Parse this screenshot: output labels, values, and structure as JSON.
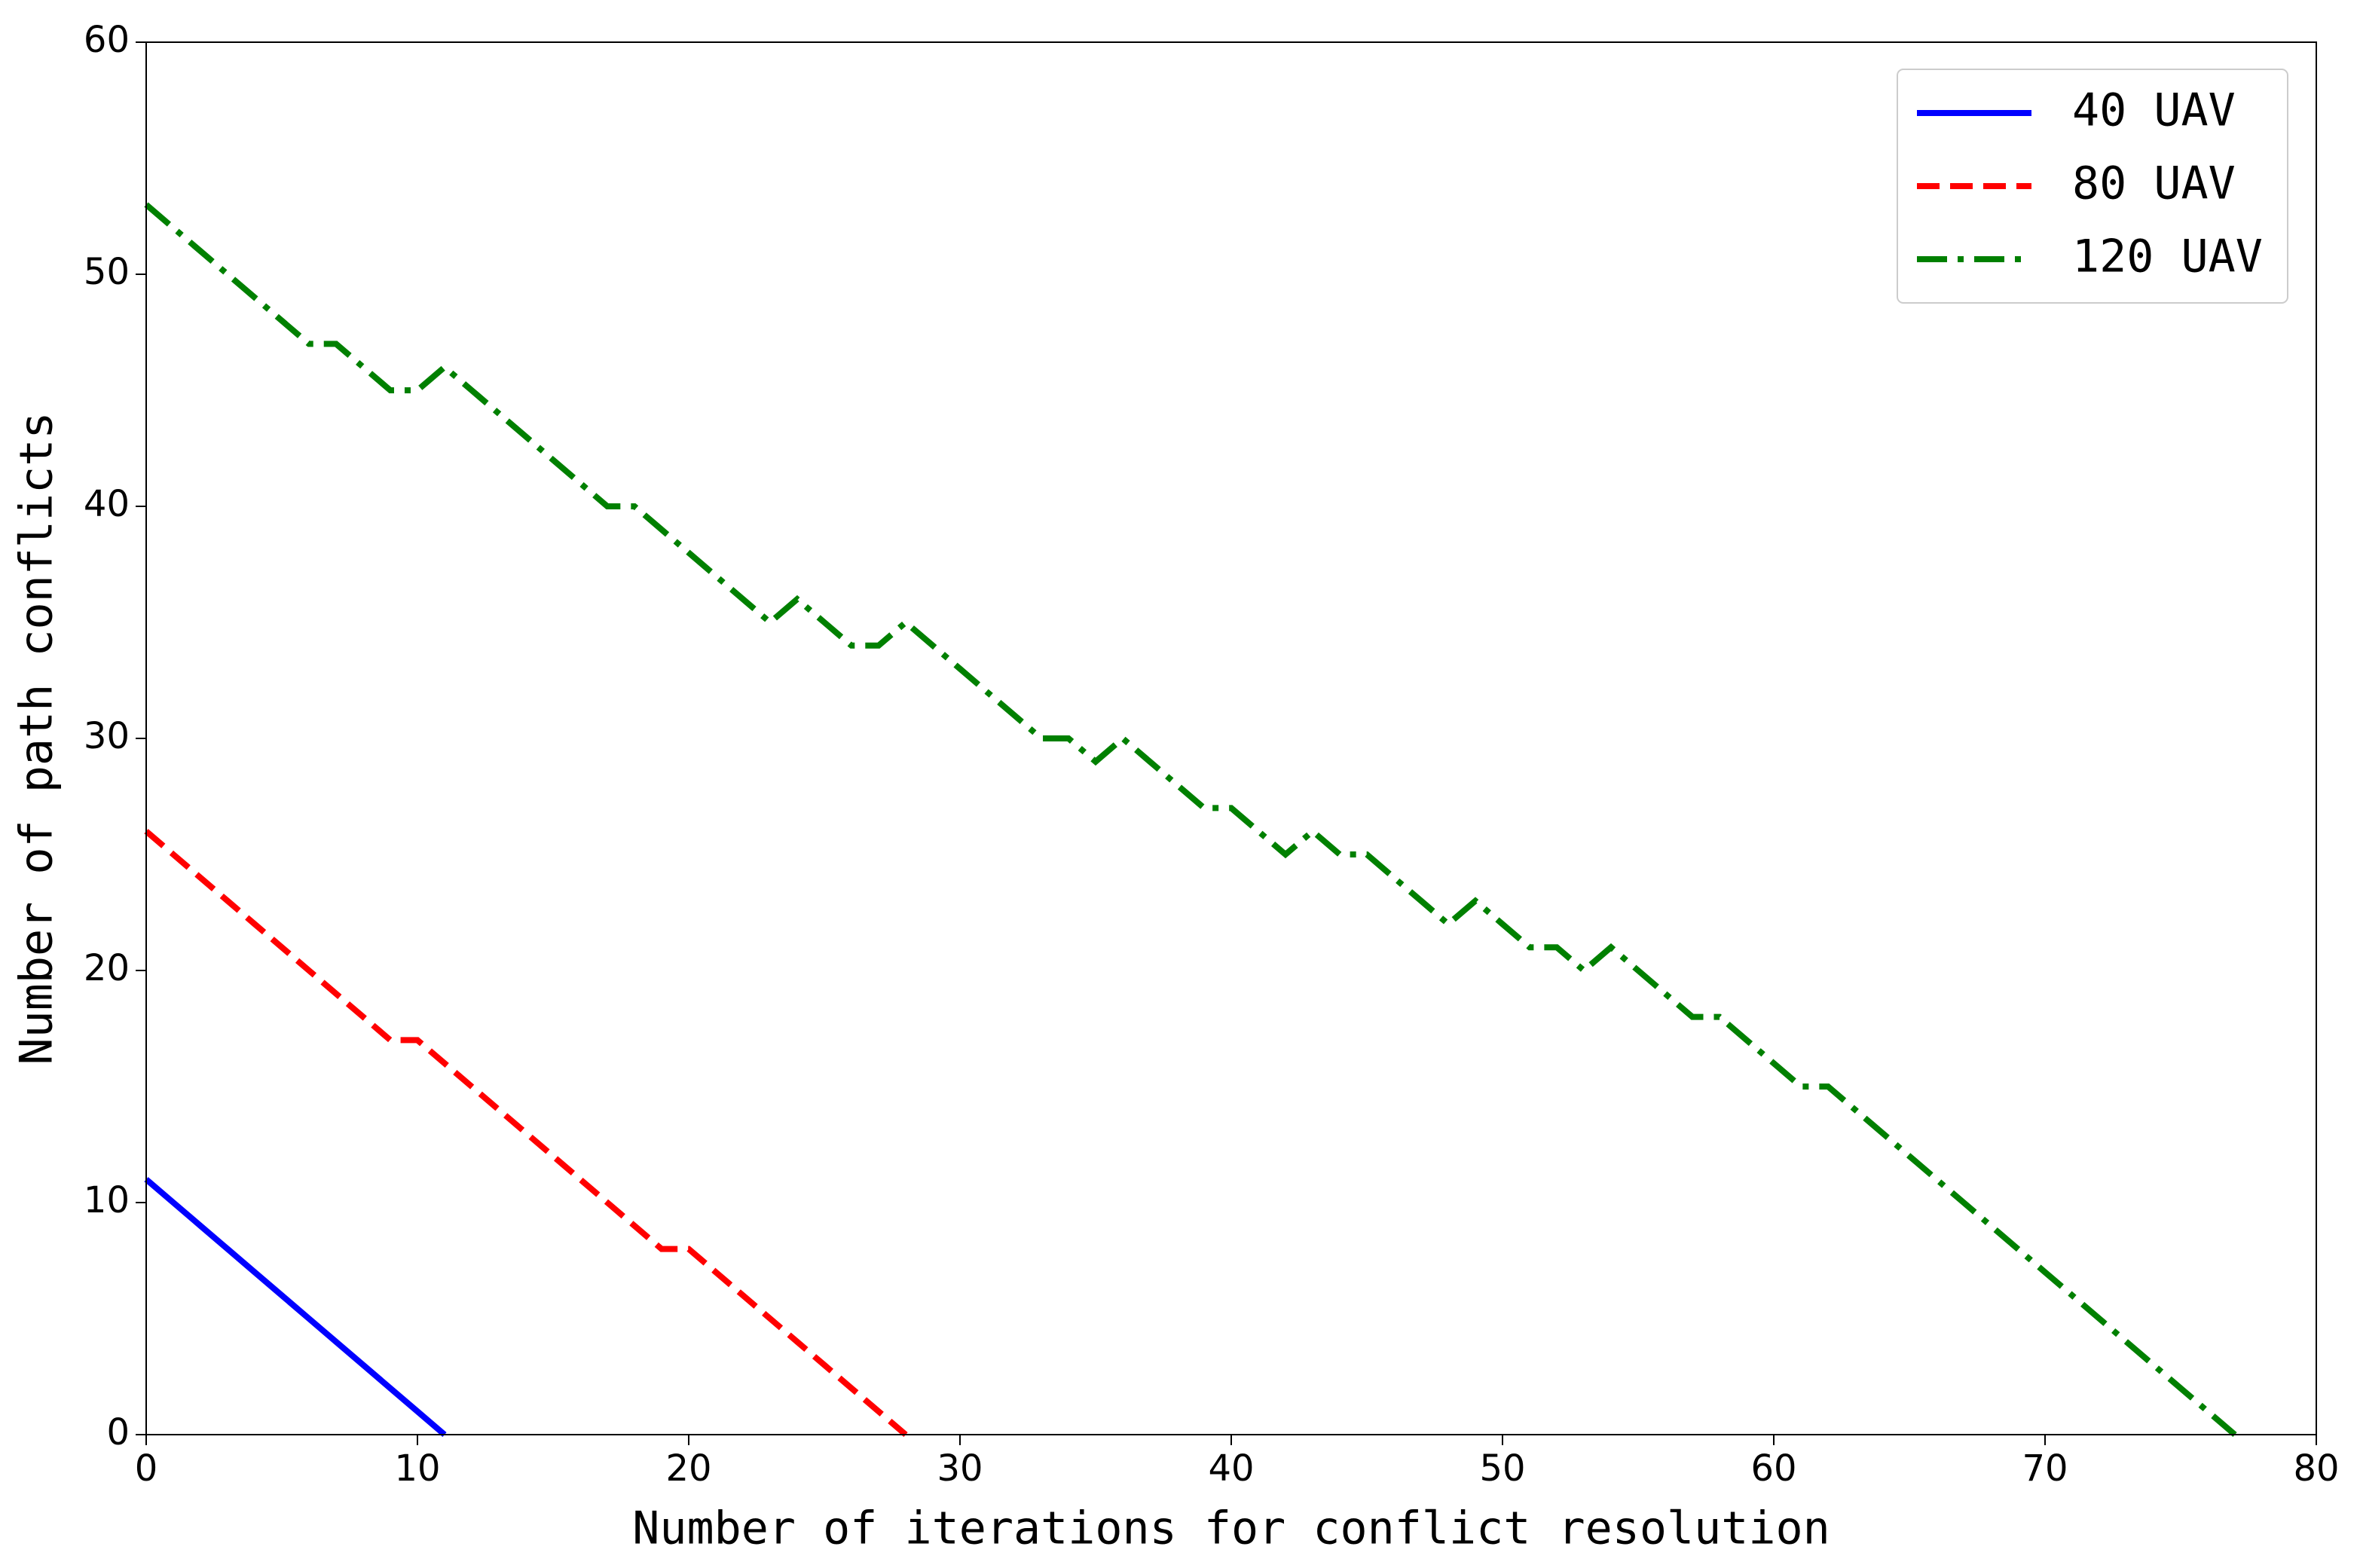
{
  "chart_data": {
    "type": "line",
    "xlabel": "Number of iterations for conflict resolution",
    "ylabel": "Number of path conflicts",
    "xlim": [
      0,
      80
    ],
    "xticks": [
      0,
      10,
      20,
      30,
      40,
      50,
      60,
      70,
      80
    ],
    "ylim": [
      0,
      60
    ],
    "yticks": [
      0,
      10,
      20,
      30,
      40,
      50,
      60
    ],
    "grid": false,
    "legend": "upper right",
    "series": [
      {
        "name": "40 UAV",
        "color": "#0000ff",
        "style": "solid",
        "x": [
          0,
          1,
          2,
          3,
          4,
          5,
          6,
          7,
          8,
          9,
          10,
          11
        ],
        "values": [
          11,
          10,
          9,
          8,
          7,
          6,
          5,
          4,
          3,
          2,
          1,
          0
        ]
      },
      {
        "name": "80 UAV",
        "color": "#ff0000",
        "style": "dashed",
        "x": [
          0,
          1,
          2,
          3,
          4,
          5,
          6,
          7,
          8,
          9,
          10,
          11,
          12,
          13,
          14,
          15,
          16,
          17,
          18,
          19,
          20,
          21,
          22,
          23,
          24,
          25,
          26,
          27,
          28
        ],
        "values": [
          26,
          25,
          24,
          23,
          22,
          21,
          20,
          19,
          18,
          17,
          17,
          16,
          15,
          14,
          13,
          12,
          11,
          10,
          9,
          8,
          8,
          7,
          6,
          5,
          4,
          3,
          2,
          1,
          0
        ]
      },
      {
        "name": "120 UAV",
        "color": "#008000",
        "style": "dashdot",
        "x": [
          0,
          1,
          2,
          3,
          4,
          5,
          6,
          7,
          8,
          9,
          10,
          11,
          12,
          13,
          14,
          15,
          16,
          17,
          18,
          19,
          20,
          21,
          22,
          23,
          24,
          25,
          26,
          27,
          28,
          29,
          30,
          31,
          32,
          33,
          34,
          35,
          36,
          37,
          38,
          39,
          40,
          41,
          42,
          43,
          44,
          45,
          46,
          47,
          48,
          49,
          50,
          51,
          52,
          53,
          54,
          55,
          56,
          57,
          58,
          59,
          60,
          61,
          62,
          63,
          64,
          65,
          66,
          67,
          68,
          69,
          70,
          71,
          72,
          73,
          74,
          75,
          76,
          77
        ],
        "values": [
          53,
          52,
          51,
          50,
          49,
          48,
          47,
          47,
          46,
          45,
          45,
          46,
          45,
          44,
          43,
          42,
          41,
          40,
          40,
          39,
          38,
          37,
          36,
          35,
          36,
          35,
          34,
          34,
          35,
          34,
          33,
          32,
          31,
          30,
          30,
          29,
          30,
          29,
          28,
          27,
          27,
          26,
          25,
          26,
          25,
          25,
          24,
          23,
          22,
          23,
          22,
          21,
          21,
          20,
          21,
          20,
          19,
          18,
          18,
          17,
          16,
          15,
          15,
          14,
          13,
          12,
          11,
          10,
          9,
          8,
          7,
          6,
          5,
          4,
          3,
          2,
          1,
          0
        ]
      }
    ]
  }
}
